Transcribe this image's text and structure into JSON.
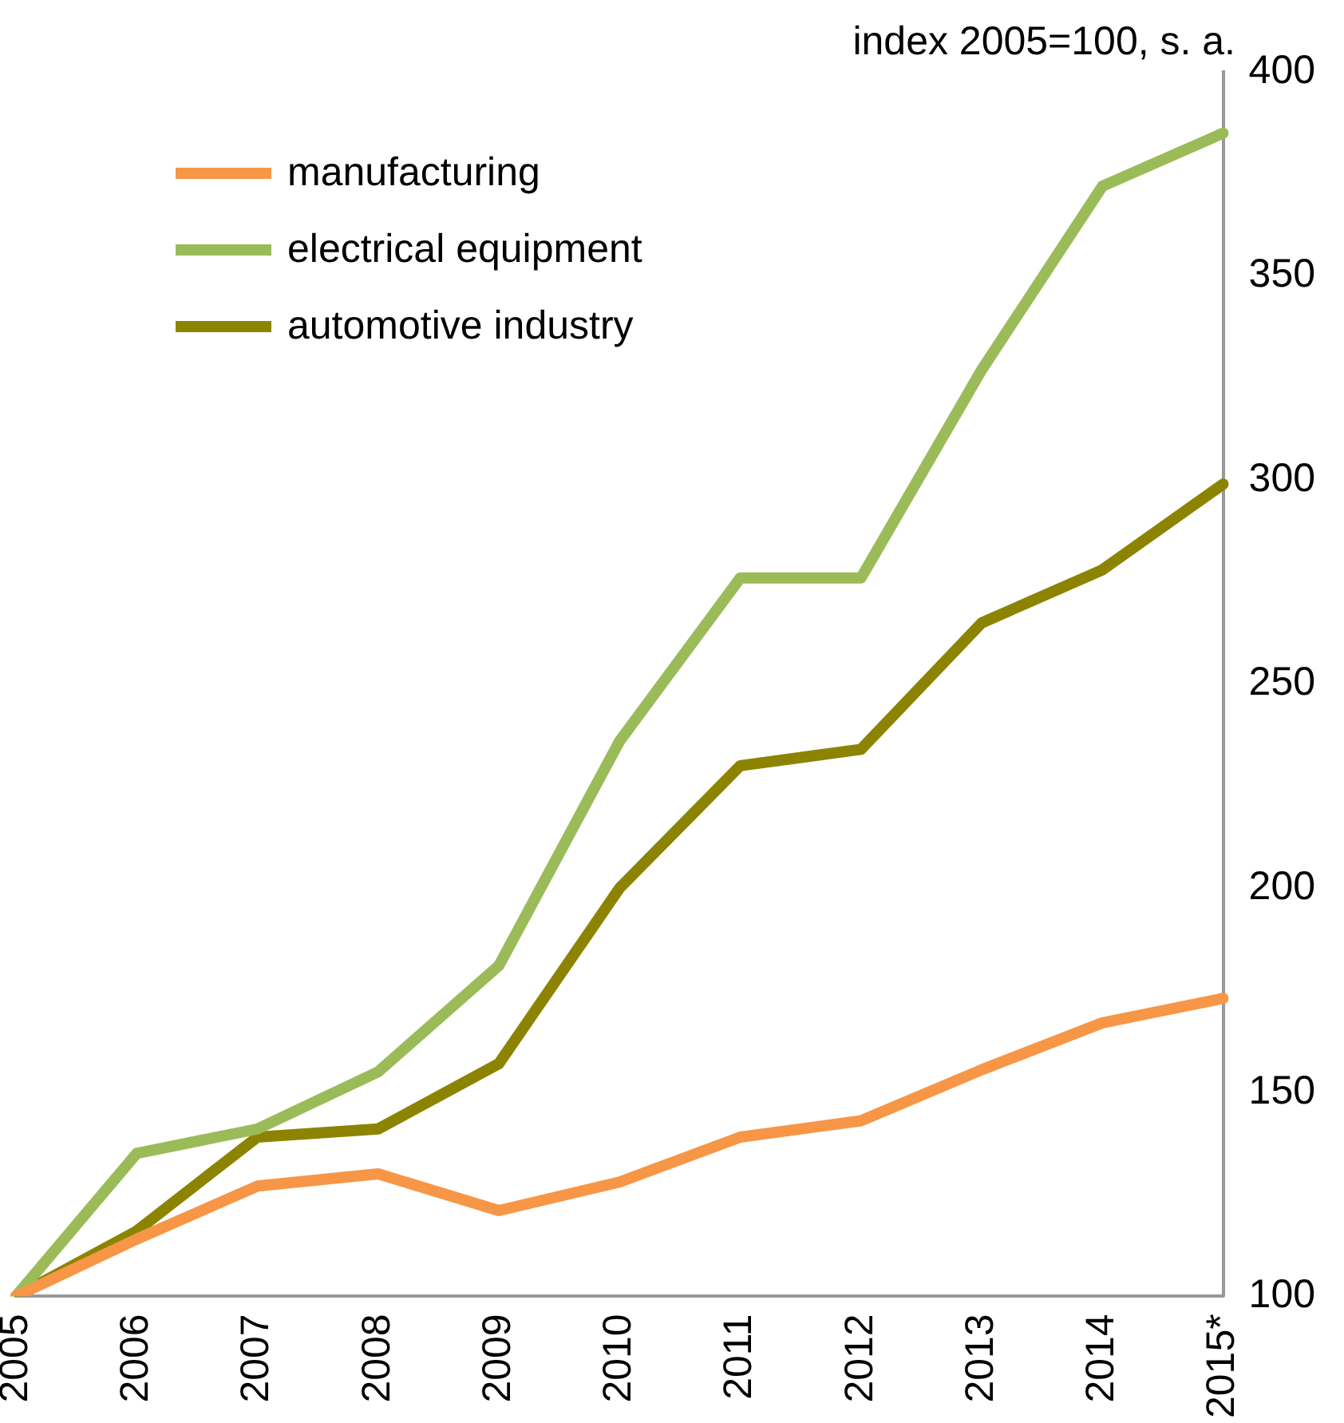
{
  "chart_data": {
    "type": "line",
    "ylabel": "index 2005=100, s. a.",
    "categories": [
      "2005",
      "2006",
      "2007",
      "2008",
      "2009",
      "2010",
      "2011",
      "2012",
      "2013",
      "2014",
      "2015*"
    ],
    "series": [
      {
        "name": "manufacturing",
        "color": "#f79646",
        "values": [
          100,
          114,
          127,
          130,
          121,
          128,
          139,
          143,
          155.5,
          167,
          173
        ]
      },
      {
        "name": "electrical equipment",
        "color": "#9bbb59",
        "values": [
          100,
          135,
          141,
          155,
          181,
          236,
          276,
          276,
          327,
          372,
          385
        ]
      },
      {
        "name": "automotive industry",
        "color": "#8c8400",
        "values": [
          100,
          116,
          139,
          141,
          157,
          200,
          230,
          234,
          265,
          278,
          299
        ]
      }
    ],
    "ylim": [
      100,
      400
    ],
    "yticks": [
      100,
      150,
      200,
      250,
      300,
      350,
      400
    ],
    "grid": false,
    "legend": "top left",
    "marker": "none",
    "line_style": "solid"
  }
}
